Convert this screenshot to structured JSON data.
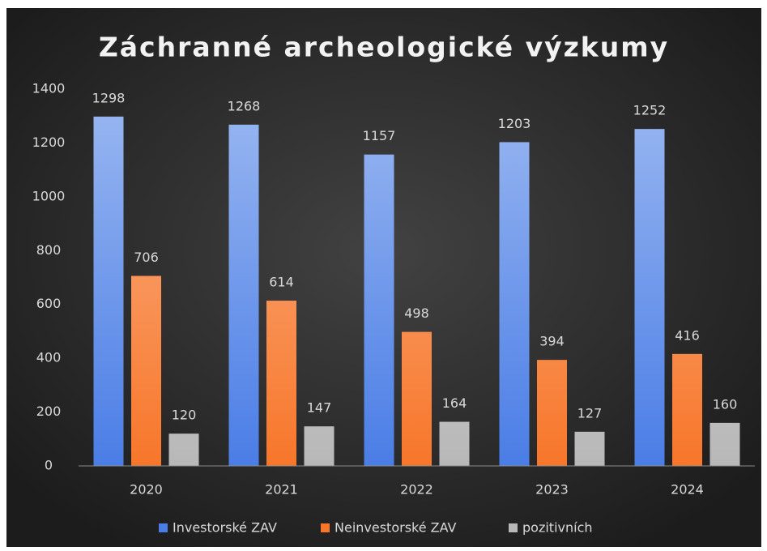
{
  "chart_data": {
    "type": "bar",
    "title": "Záchranné archeologické výzkumy",
    "categories": [
      "2020",
      "2021",
      "2022",
      "2023",
      "2024"
    ],
    "series": [
      {
        "name": "Investorské ZAV",
        "color": "#4a7de6",
        "values": [
          1298,
          1268,
          1157,
          1203,
          1252
        ]
      },
      {
        "name": "Neinvestorské ZAV",
        "color": "#f7762a",
        "values": [
          706,
          614,
          498,
          394,
          416
        ]
      },
      {
        "name": "pozitivních",
        "color": "#b8b8b8",
        "values": [
          120,
          147,
          164,
          127,
          160
        ]
      }
    ],
    "ylim": [
      0,
      1400
    ],
    "yticks": [
      0,
      200,
      400,
      600,
      800,
      1000,
      1200,
      1400
    ],
    "grid": false,
    "legend": "bottom"
  }
}
